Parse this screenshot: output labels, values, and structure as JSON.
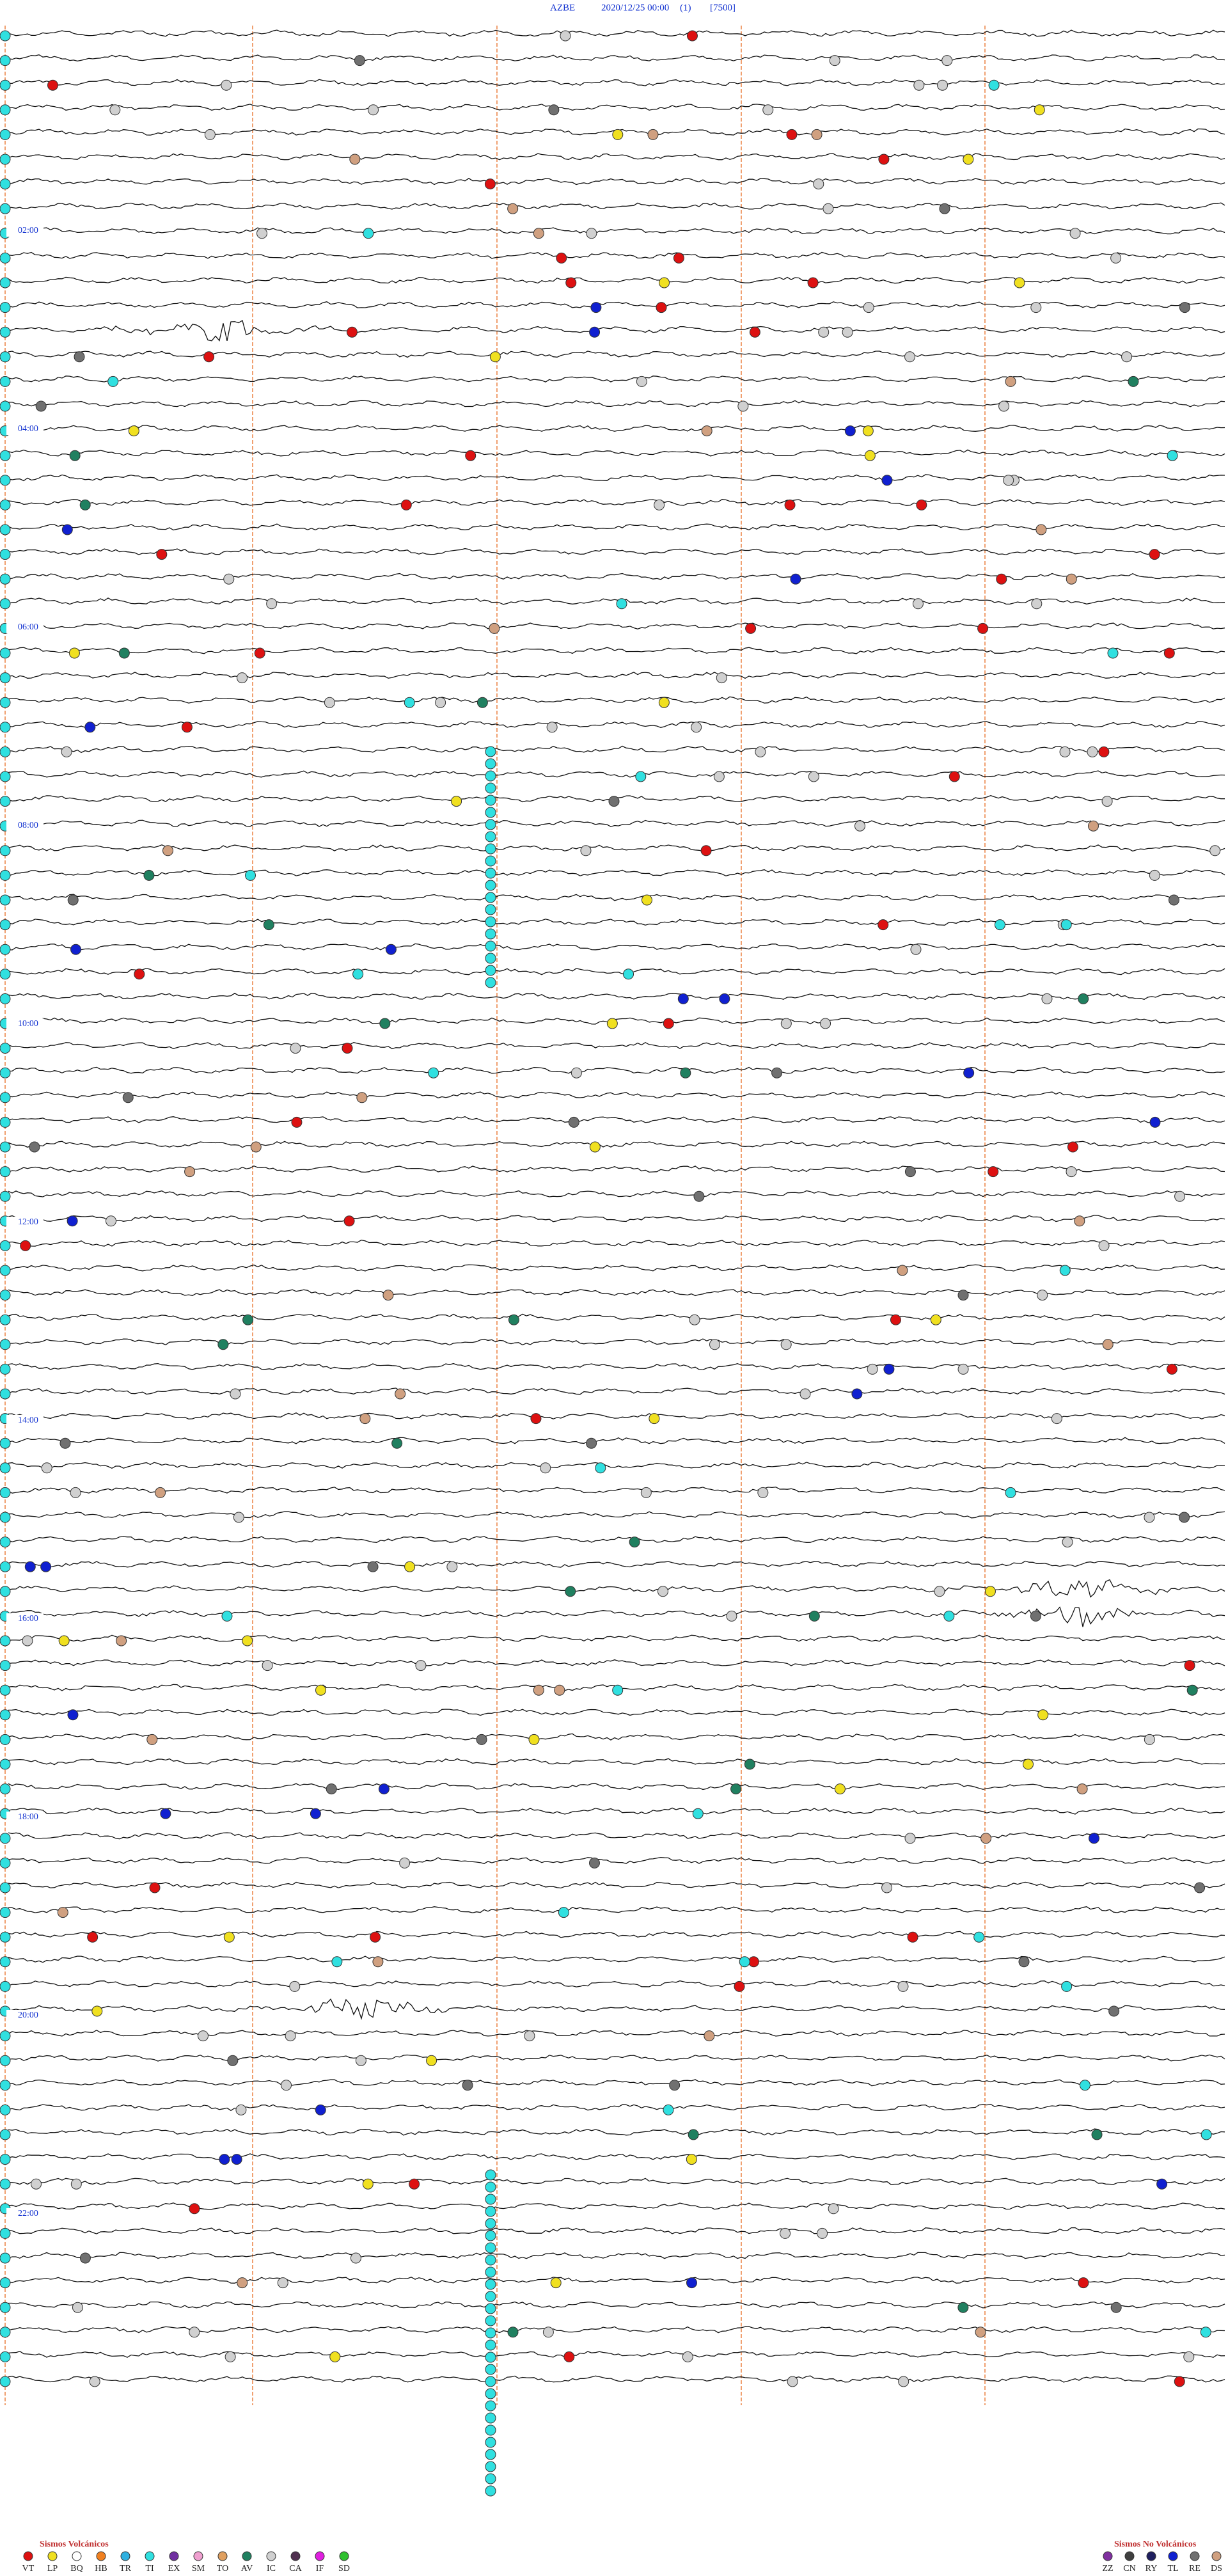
{
  "header": {
    "parts": [
      "AZBE",
      "2020/12/25 00:00",
      "(1)",
      "[7500]"
    ]
  },
  "time_labels": [
    "02:00",
    "04:00",
    "06:00",
    "08:00",
    "10:00",
    "12:00",
    "14:00",
    "16:00",
    "18:00",
    "20:00",
    "22:00"
  ],
  "legend": {
    "volcanic": {
      "title": "Sismos Volcánicos",
      "items": [
        {
          "code": "VT",
          "color": "#dd1111"
        },
        {
          "code": "LP",
          "color": "#f0e020"
        },
        {
          "code": "BQ",
          "color": "#ffffff"
        },
        {
          "code": "HB",
          "color": "#f08020"
        },
        {
          "code": "TR",
          "color": "#30b0e0"
        },
        {
          "code": "TI",
          "color": "#30e0e0"
        },
        {
          "code": "EX",
          "color": "#7030a0"
        },
        {
          "code": "SM",
          "color": "#f0a0d0"
        },
        {
          "code": "TO",
          "color": "#e0a060"
        },
        {
          "code": "AV",
          "color": "#208060"
        },
        {
          "code": "IC",
          "color": "#d0d0d0"
        },
        {
          "code": "CA",
          "color": "#503050"
        },
        {
          "code": "IF",
          "color": "#e020e0"
        },
        {
          "code": "SD",
          "color": "#30c030"
        }
      ]
    },
    "non_volcanic": {
      "title": "Sismos No Volcánicos",
      "items": [
        {
          "code": "ZZ",
          "color": "#8030a0"
        },
        {
          "code": "CN",
          "color": "#404040"
        },
        {
          "code": "RY",
          "color": "#202060"
        },
        {
          "code": "TL",
          "color": "#1020d0"
        },
        {
          "code": "RE",
          "color": "#707070"
        },
        {
          "code": "DS",
          "color": "#d0a080"
        }
      ]
    }
  }
}
